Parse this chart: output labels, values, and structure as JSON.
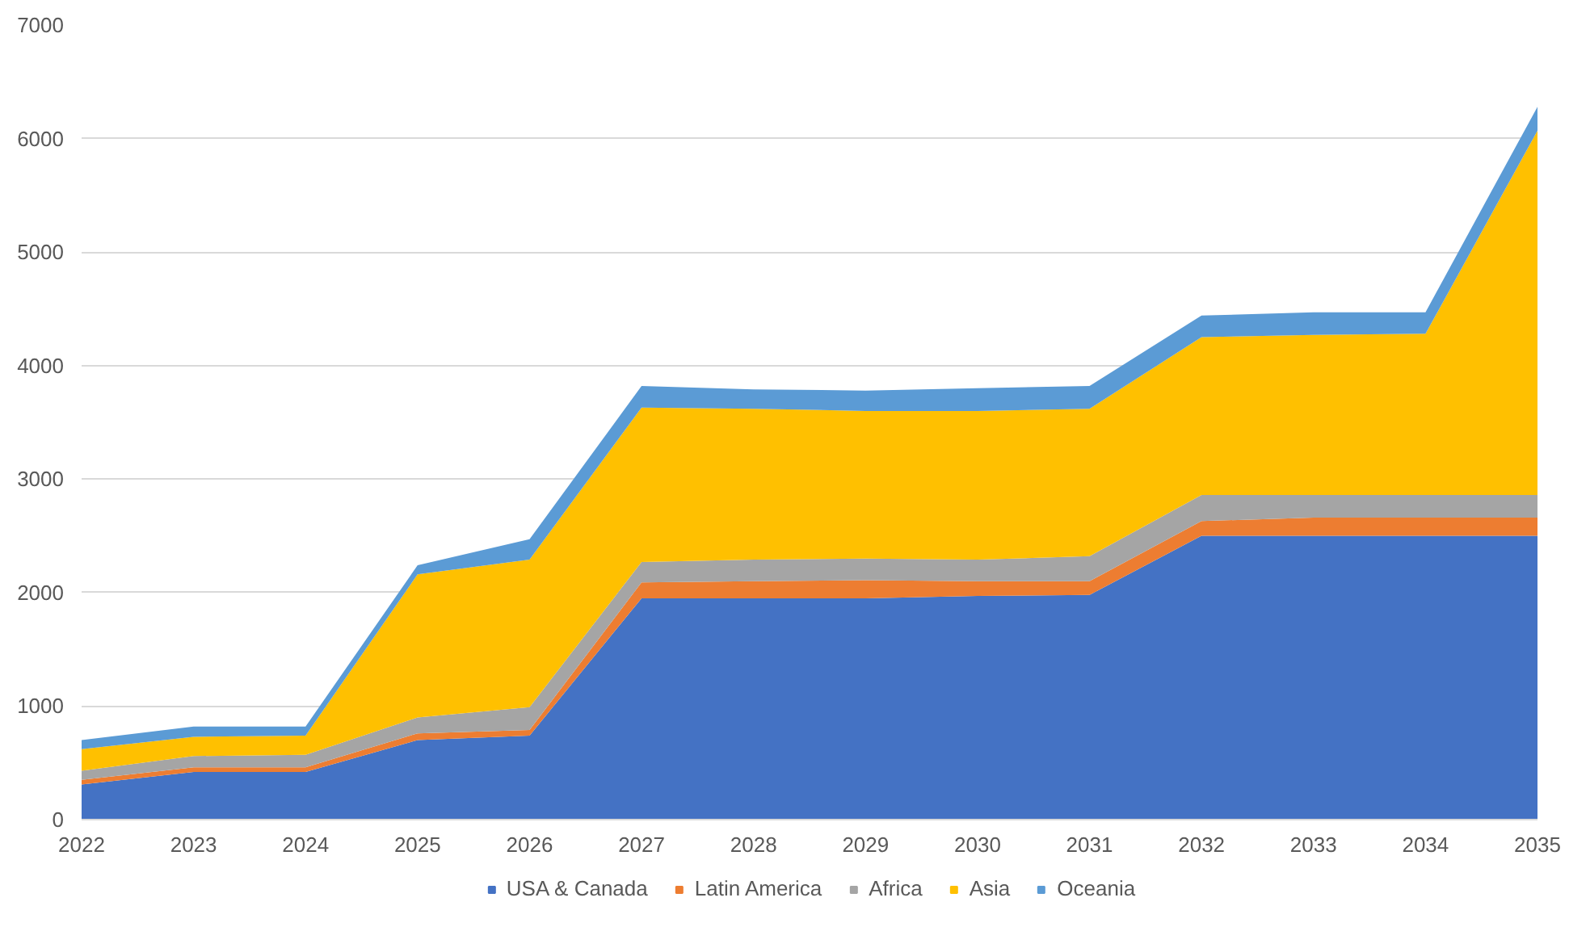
{
  "chart_data": {
    "type": "area",
    "stacked": true,
    "x": [
      2022,
      2023,
      2024,
      2025,
      2026,
      2027,
      2028,
      2029,
      2030,
      2031,
      2032,
      2033,
      2034,
      2035
    ],
    "xlim": [
      2022,
      2035
    ],
    "xticks": [
      2022,
      2023,
      2024,
      2025,
      2026,
      2027,
      2028,
      2029,
      2030,
      2031,
      2032,
      2033,
      2034,
      2035
    ],
    "ylim": [
      0,
      7000
    ],
    "yticks": [
      0,
      1000,
      2000,
      3000,
      4000,
      5000,
      6000,
      7000
    ],
    "grid": "y",
    "legend": "bottom",
    "series": [
      {
        "name": "USA & Canada",
        "color": "#4472c4",
        "values": [
          310,
          420,
          420,
          700,
          740,
          1950,
          1950,
          1950,
          1970,
          1980,
          2500,
          2500,
          2500,
          2500
        ]
      },
      {
        "name": "Latin America",
        "color": "#ed7d31",
        "values": [
          40,
          40,
          40,
          60,
          50,
          140,
          150,
          160,
          130,
          120,
          130,
          160,
          160,
          160
        ]
      },
      {
        "name": "Africa",
        "color": "#a5a5a5",
        "values": [
          80,
          100,
          110,
          140,
          200,
          180,
          190,
          190,
          190,
          220,
          230,
          200,
          200,
          200
        ]
      },
      {
        "name": "Asia",
        "color": "#ffc000",
        "values": [
          190,
          170,
          170,
          1260,
          1300,
          1360,
          1330,
          1300,
          1310,
          1300,
          1390,
          1410,
          1420,
          3210
        ]
      },
      {
        "name": "Oceania",
        "color": "#5b9bd5",
        "values": [
          80,
          90,
          80,
          80,
          180,
          190,
          170,
          180,
          200,
          200,
          190,
          200,
          190,
          210
        ]
      }
    ]
  }
}
